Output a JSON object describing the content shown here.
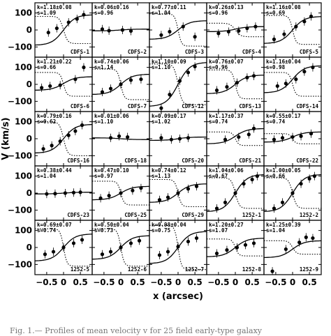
{
  "chart_data": {
    "type": "scatter",
    "xlabel": "x (arcsec)",
    "ylabel": "V (km/s)",
    "xlim": [
      -0.85,
      0.85
    ],
    "ylim": [
      -160,
      160
    ],
    "xticks": [
      -0.5,
      0,
      0.5
    ],
    "xtick_labels": [
      "−0.5",
      "0",
      "0.5"
    ],
    "yticks": [
      -100,
      0,
      100
    ],
    "ytick_labels": [
      "−100",
      "0",
      "100"
    ],
    "panels": [
      {
        "id": "CDFS-1",
        "k": "k=1.18±0.08",
        "s": "s=1.09",
        "points": [
          [
            -0.45,
            -15
          ],
          [
            -0.2,
            10
          ],
          [
            0.15,
            45
          ],
          [
            0.4,
            65
          ],
          [
            0.6,
            90
          ]
        ],
        "solid": [
          -0.1,
          90
        ],
        "dotted": [
          -80,
          0.12
        ]
      },
      {
        "id": "CDFS-2",
        "k": "k=0.06±0.16",
        "s": "s=0.96",
        "points": [
          [
            -0.55,
            5
          ],
          [
            -0.35,
            -4
          ],
          [
            0.05,
            0
          ],
          [
            0.3,
            -6
          ]
        ],
        "solid": [
          0,
          5
        ],
        "dotted": null
      },
      {
        "id": "CDFS-3",
        "k": "k=0.77±0.11",
        "s": "s=1.04",
        "points": [
          [
            -0.5,
            -30
          ],
          [
            -0.25,
            -10
          ],
          [
            0.15,
            20
          ],
          [
            0.5,
            -40
          ]
        ],
        "solid": [
          0,
          55
        ],
        "dotted": [
          -95,
          0.1
        ]
      },
      {
        "id": "CDFS-4",
        "k": "k=0.26±0.13",
        "s": "s=0.96",
        "points": [
          [
            -0.5,
            -20
          ],
          [
            -0.2,
            -10
          ],
          [
            0.1,
            -5
          ],
          [
            0.35,
            10
          ],
          [
            0.6,
            20
          ]
        ],
        "solid": [
          5,
          15
        ],
        "dotted": [
          -40,
          0.15
        ]
      },
      {
        "id": "CDFS-5",
        "k": "k=1.16±0.08",
        "s": "s=0.69",
        "points": [
          [
            -0.55,
            -55
          ],
          [
            -0.25,
            -25
          ],
          [
            0.1,
            20
          ],
          [
            0.35,
            50
          ],
          [
            0.55,
            80
          ]
        ],
        "solid": [
          0,
          80
        ],
        "dotted": [
          -85,
          0.1
        ]
      },
      {
        "id": "CDFS-6",
        "k": "k=1.21±0.22",
        "s": "s=0.66",
        "points": [
          [
            -0.65,
            -20
          ],
          [
            -0.4,
            -10
          ],
          [
            -0.1,
            -5
          ],
          [
            0.35,
            30
          ],
          [
            0.6,
            100
          ]
        ],
        "solid": [
          5,
          40
        ],
        "dotted": [
          -70,
          0.1
        ]
      },
      {
        "id": "CDFS-7",
        "k": "k=0.74±0.06",
        "s": "s=1.14",
        "points": [
          [
            -0.55,
            -45
          ],
          [
            -0.3,
            -25
          ],
          [
            0,
            0
          ],
          [
            0.3,
            25
          ],
          [
            0.6,
            30
          ]
        ],
        "solid": [
          0,
          60
        ],
        "dotted": [
          -90,
          0.1
        ]
      },
      {
        "id": "CDFS-12",
        "k": "k=1.10±0.09",
        "s": "s=1.10",
        "points": [
          [
            -0.5,
            -140
          ],
          [
            -0.25,
            -60
          ],
          [
            0.05,
            20
          ],
          [
            0.3,
            70
          ],
          [
            0.5,
            105
          ]
        ],
        "solid": [
          0,
          130
        ],
        "dotted": [
          -120,
          0.12
        ]
      },
      {
        "id": "CDFS-13",
        "k": "k=0.76±0.07",
        "s": "s=0.96",
        "points": [
          [
            -0.55,
            -35
          ],
          [
            -0.25,
            -15
          ],
          [
            0.05,
            10
          ],
          [
            0.35,
            40
          ],
          [
            0.55,
            50
          ]
        ],
        "solid": [
          0,
          55
        ],
        "dotted": [
          -85,
          0.1
        ]
      },
      {
        "id": "CDFS-14",
        "k": "k=1.16±0.04",
        "s": "s=0.98",
        "points": [
          [
            -0.45,
            -10
          ],
          [
            -0.2,
            5
          ],
          [
            0.1,
            30
          ],
          [
            0.35,
            75
          ],
          [
            0.6,
            100
          ]
        ],
        "solid": [
          30,
          80
        ],
        "dotted": [
          -70,
          0.1
        ]
      },
      {
        "id": "CDFS-16",
        "k": "k=0.79±0.16",
        "s": "s=0.62",
        "points": [
          [
            -0.6,
            -60
          ],
          [
            -0.35,
            -40
          ],
          [
            -0.1,
            -15
          ],
          [
            0.15,
            20
          ],
          [
            0.35,
            45
          ],
          [
            0.55,
            80
          ]
        ],
        "solid": [
          0,
          85
        ],
        "dotted": [
          -100,
          0.12
        ]
      },
      {
        "id": "CDFS-18",
        "k": "k=0.01±0.06",
        "s": "s=1.10",
        "points": [
          [
            -0.3,
            5
          ],
          [
            -0.05,
            15
          ],
          [
            0.2,
            10
          ]
        ],
        "solid": [
          0,
          -5
        ],
        "dotted": null
      },
      {
        "id": "CDFS-20",
        "k": "k=0.09±0.17",
        "s": "s=1.02",
        "points": [
          [
            -0.5,
            5
          ],
          [
            -0.2,
            -5
          ],
          [
            0.05,
            0
          ],
          [
            0.3,
            5
          ]
        ],
        "solid": [
          0,
          10
        ],
        "dotted": null
      },
      {
        "id": "CDFS-21",
        "k": "k=1.17±0.37",
        "s": "s=0.74",
        "points": [
          [
            -0.3,
            -5
          ],
          [
            0.1,
            10
          ],
          [
            0.4,
            25
          ],
          [
            0.55,
            60
          ]
        ],
        "solid": [
          15,
          45
        ],
        "dotted": [
          -40,
          0.1
        ]
      },
      {
        "id": "CDFS-22",
        "k": "k=0.55±0.17",
        "s": "s=0.74",
        "points": [
          [
            -0.55,
            -5
          ],
          [
            -0.3,
            5
          ],
          [
            0,
            10
          ],
          [
            0.25,
            15
          ],
          [
            0.55,
            30
          ]
        ],
        "solid": [
          10,
          30
        ],
        "dotted": [
          -30,
          0.1
        ]
      },
      {
        "id": "CDFS-23",
        "k": "k=0.38±0.44",
        "s": "s=1.04",
        "points": [
          [
            -0.5,
            -5
          ],
          [
            -0.25,
            -3
          ],
          [
            0.05,
            0
          ],
          [
            0.3,
            3
          ],
          [
            0.5,
            5
          ]
        ],
        "solid": [
          0,
          5
        ],
        "dotted": null
      },
      {
        "id": "CDFS-25",
        "k": "k=0.47±0.10",
        "s": "s=0.97",
        "points": [
          [
            -0.6,
            -30
          ],
          [
            -0.35,
            -15
          ],
          [
            0,
            0
          ],
          [
            0.35,
            15
          ],
          [
            0.6,
            30
          ]
        ],
        "solid": [
          0,
          40
        ],
        "dotted": [
          -70,
          0.1
        ]
      },
      {
        "id": "CDFS-29",
        "k": "k=0.74±0.12",
        "s": "s=1.13",
        "points": [
          [
            -0.55,
            -40
          ],
          [
            -0.3,
            -25
          ],
          [
            0,
            0
          ],
          [
            0.3,
            25
          ],
          [
            0.55,
            40
          ]
        ],
        "solid": [
          0,
          55
        ],
        "dotted": [
          -80,
          0.1
        ]
      },
      {
        "id": "1252-1",
        "k": "k=1.04±0.06",
        "s": "s=0.67",
        "points": [
          [
            -0.55,
            -90
          ],
          [
            -0.3,
            -55
          ],
          [
            0,
            0
          ],
          [
            0.25,
            55
          ],
          [
            0.5,
            80
          ],
          [
            0.65,
            100
          ]
        ],
        "solid": [
          0,
          110
        ],
        "dotted": [
          -90,
          0.12
        ]
      },
      {
        "id": "1252-2",
        "k": "k=1.00±0.05",
        "s": "s=0.66",
        "points": [
          [
            -0.55,
            -90
          ],
          [
            -0.3,
            -55
          ],
          [
            0,
            0
          ],
          [
            0.25,
            55
          ],
          [
            0.5,
            85
          ],
          [
            0.65,
            100
          ]
        ],
        "solid": [
          0,
          110
        ],
        "dotted": [
          -90,
          0.12
        ]
      },
      {
        "id": "1252-5",
        "k": "k=0.69±0.07",
        "s": "s=0.74",
        "points": [
          [
            -0.55,
            -40
          ],
          [
            -0.3,
            -25
          ],
          [
            0,
            0
          ],
          [
            0.3,
            25
          ],
          [
            0.55,
            45
          ]
        ],
        "solid": [
          0,
          80
        ],
        "dotted": [
          -110,
          0.1
        ]
      },
      {
        "id": "1252-6",
        "k": "k=0.50±0.04",
        "s": "s=0.73",
        "points": [
          [
            -0.55,
            -40
          ],
          [
            -0.3,
            -25
          ],
          [
            0,
            0
          ],
          [
            0.3,
            25
          ],
          [
            0.55,
            40
          ]
        ],
        "solid": [
          0,
          70
        ],
        "dotted": [
          -110,
          0.1
        ]
      },
      {
        "id": "1252-7",
        "k": "k=0.98±0.04",
        "s": "s=0.75",
        "points": [
          [
            -0.55,
            -45
          ],
          [
            -0.3,
            -25
          ],
          [
            0,
            5
          ],
          [
            0.3,
            35
          ],
          [
            0.55,
            55
          ]
        ],
        "solid": [
          0,
          95
        ],
        "dotted": [
          -130,
          0.1
        ]
      },
      {
        "id": "1252-8",
        "k": "k=1.20±0.27",
        "s": "s=1.07",
        "points": [
          [
            -0.55,
            -35
          ],
          [
            -0.25,
            -15
          ],
          [
            0.05,
            0
          ],
          [
            0.3,
            15
          ],
          [
            0.55,
            25
          ]
        ],
        "solid": [
          0,
          55
        ],
        "dotted": [
          -50,
          0.1
        ]
      },
      {
        "id": "1252-9",
        "k": "k=1.25±0.39",
        "s": "s=1.04",
        "points": [
          [
            -0.6,
            -140
          ],
          [
            -0.2,
            -10
          ],
          [
            0.2,
            30
          ],
          [
            0.4,
            60
          ],
          [
            0.6,
            55
          ]
        ],
        "solid": [
          -10,
          50
        ],
        "dotted": [
          -40,
          0.12
        ]
      }
    ]
  },
  "caption": "Fig. 1.— Profiles of mean velocity v for 25 field early-type galaxy"
}
